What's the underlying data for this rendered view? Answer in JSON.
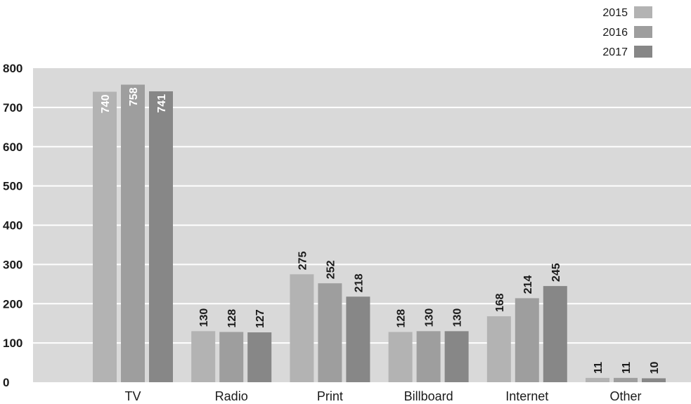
{
  "chart_data": {
    "type": "bar",
    "title": "",
    "xlabel": "",
    "ylabel": "",
    "ylim": [
      0,
      800
    ],
    "yticks": [
      0,
      100,
      200,
      300,
      400,
      500,
      600,
      700,
      800
    ],
    "grid": true,
    "legend_position": "top-right",
    "categories": [
      "TV",
      "Radio",
      "Print",
      "Billboard",
      "Internet",
      "Other"
    ],
    "series": [
      {
        "name": "2015",
        "color": "#b3b3b3",
        "values": [
          740,
          130,
          275,
          128,
          168,
          11
        ]
      },
      {
        "name": "2016",
        "color": "#9e9e9e",
        "values": [
          758,
          128,
          252,
          130,
          214,
          11
        ]
      },
      {
        "name": "2017",
        "color": "#878787",
        "values": [
          741,
          127,
          218,
          130,
          245,
          10
        ]
      }
    ],
    "data_labels": [
      [
        "740",
        "130",
        "275",
        "128",
        "168",
        "11"
      ],
      [
        "758",
        "128",
        "252",
        "130",
        "214",
        "11"
      ],
      [
        "741",
        "127",
        "218",
        "130",
        "245",
        "10"
      ]
    ],
    "colors": {
      "plot_background": "#d9d9d9",
      "gridline": "#ffffff"
    }
  }
}
